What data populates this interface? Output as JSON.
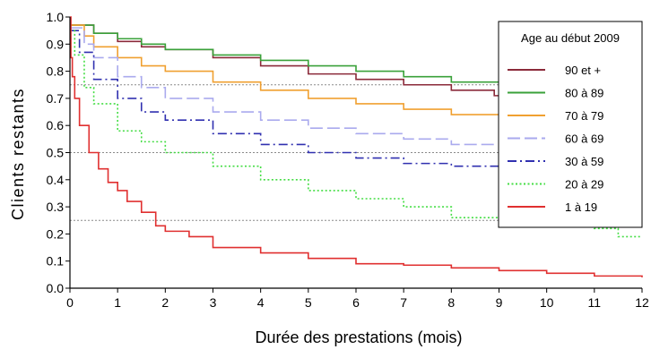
{
  "chart_data": {
    "type": "line",
    "xlabel": "Durée des prestations (mois)",
    "ylabel": "Clients restants",
    "xlim": [
      0,
      12
    ],
    "ylim": [
      0,
      1.0
    ],
    "x_ticks": [
      "0",
      "1",
      "2",
      "3",
      "4",
      "5",
      "6",
      "7",
      "8",
      "9",
      "10",
      "11",
      "12"
    ],
    "y_ticks": [
      "0.0",
      "0.1",
      "0.2",
      "0.3",
      "0.4",
      "0.5",
      "0.6",
      "0.7",
      "0.8",
      "0.9",
      "1.0"
    ],
    "reference_lines_y": [
      0.25,
      0.5,
      0.75
    ],
    "grid": false,
    "legend": {
      "title": "Age au début 2009",
      "placement": "top-right"
    },
    "series": [
      {
        "name": "90 et +",
        "color": "#8b2a3a",
        "dash": "solid",
        "x": [
          0,
          0.5,
          1,
          1.5,
          2,
          3,
          4,
          5,
          6,
          7,
          8,
          8.9,
          9
        ],
        "y": [
          0.97,
          0.94,
          0.91,
          0.89,
          0.88,
          0.85,
          0.82,
          0.79,
          0.77,
          0.75,
          0.73,
          0.71,
          0.68
        ]
      },
      {
        "name": "80 à 89",
        "color": "#3aa13a",
        "dash": "solid",
        "x": [
          0,
          0.5,
          1,
          1.5,
          2,
          3,
          4,
          5,
          6,
          7,
          8,
          9,
          9.2
        ],
        "y": [
          0.97,
          0.94,
          0.92,
          0.9,
          0.88,
          0.86,
          0.84,
          0.82,
          0.8,
          0.78,
          0.76,
          0.74,
          0.73
        ]
      },
      {
        "name": "70 à 79",
        "color": "#f0a030",
        "dash": "solid",
        "x": [
          0,
          0.3,
          0.5,
          1,
          1.5,
          2,
          3,
          4,
          5,
          6,
          7,
          8,
          9,
          9.4
        ],
        "y": [
          0.97,
          0.93,
          0.89,
          0.85,
          0.82,
          0.8,
          0.76,
          0.73,
          0.7,
          0.68,
          0.66,
          0.64,
          0.62,
          0.62
        ]
      },
      {
        "name": "60 à 69",
        "color": "#aaaaee",
        "dash": "longdash",
        "x": [
          0,
          0.3,
          0.5,
          1,
          1.5,
          2,
          3,
          4,
          5,
          6,
          7,
          8,
          9,
          9.6
        ],
        "y": [
          0.96,
          0.9,
          0.85,
          0.78,
          0.74,
          0.7,
          0.65,
          0.62,
          0.59,
          0.57,
          0.55,
          0.53,
          0.52,
          0.51
        ]
      },
      {
        "name": "30 à 59",
        "color": "#3030b0",
        "dash": "dashdot",
        "x": [
          0,
          0.2,
          0.5,
          1,
          1.5,
          2,
          3,
          4,
          5,
          6,
          7,
          8,
          9,
          9.8
        ],
        "y": [
          0.95,
          0.87,
          0.77,
          0.7,
          0.65,
          0.62,
          0.57,
          0.53,
          0.5,
          0.48,
          0.46,
          0.45,
          0.44,
          0.43
        ]
      },
      {
        "name": "20 à 29",
        "color": "#44dd44",
        "dash": "dotted",
        "x": [
          0,
          0.1,
          0.3,
          0.5,
          1,
          1.5,
          2,
          3,
          4,
          5,
          6,
          7,
          8,
          9,
          10,
          11,
          11.5,
          12
        ],
        "y": [
          0.95,
          0.86,
          0.74,
          0.68,
          0.58,
          0.54,
          0.5,
          0.45,
          0.4,
          0.36,
          0.33,
          0.3,
          0.26,
          0.24,
          0.23,
          0.22,
          0.19,
          0.19
        ]
      },
      {
        "name": "1 à 19",
        "color": "#e03030",
        "dash": "solid",
        "x": [
          0,
          0.02,
          0.05,
          0.1,
          0.2,
          0.4,
          0.6,
          0.8,
          1,
          1.2,
          1.5,
          1.8,
          2,
          2.5,
          3,
          4,
          5,
          6,
          7,
          8,
          9,
          10,
          11,
          12
        ],
        "y": [
          1.0,
          0.85,
          0.78,
          0.7,
          0.6,
          0.5,
          0.44,
          0.39,
          0.36,
          0.32,
          0.28,
          0.23,
          0.21,
          0.19,
          0.15,
          0.13,
          0.11,
          0.09,
          0.085,
          0.075,
          0.065,
          0.055,
          0.045,
          0.04
        ]
      }
    ]
  }
}
